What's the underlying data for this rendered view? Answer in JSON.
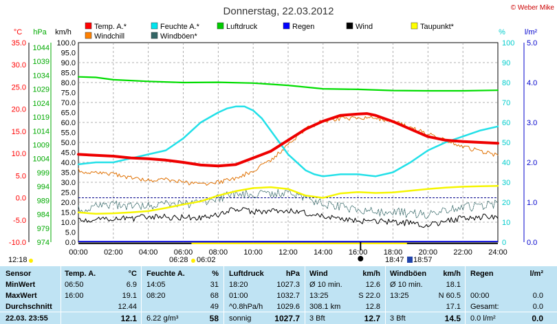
{
  "header": {
    "title": "Donnerstag, 22.03.2012",
    "credit": "© Weber Mike"
  },
  "units": {
    "temp": "°C",
    "press": "hPa",
    "wind": "km/h",
    "hum": "%",
    "rain": "l/m²"
  },
  "legend": [
    {
      "label": "Temp. A.*",
      "color": "#ff0000"
    },
    {
      "label": "Feuchte A.*",
      "color": "#00e5ee"
    },
    {
      "label": "Luftdruck",
      "color": "#00cc00"
    },
    {
      "label": "Regen",
      "color": "#0000ff"
    },
    {
      "label": "Wind",
      "color": "#000000"
    },
    {
      "label": "Taupunkt*",
      "color": "#ffff00"
    },
    {
      "label": "Windchill",
      "color": "#ff8000"
    },
    {
      "label": "Windböen*",
      "color": "#336666"
    }
  ],
  "chart_data": {
    "type": "line",
    "temp_ticks": [
      "35.0",
      "30.0",
      "25.0",
      "20.0",
      "15.0",
      "10.0",
      "5.0",
      "0.0",
      "-5.0",
      "-10.0"
    ],
    "press_ticks": [
      "1044",
      "1039",
      "1034",
      "1029",
      "1024",
      "1019",
      "1014",
      "1009",
      "1004",
      "999",
      "994",
      "989",
      "984",
      "979",
      "974"
    ],
    "wind_ticks": [
      "100.0",
      "95.0",
      "90.0",
      "85.0",
      "80.0",
      "75.0",
      "70.0",
      "65.0",
      "60.0",
      "55.0",
      "50.0",
      "45.0",
      "40.0",
      "35.0",
      "30.0",
      "25.0",
      "20.0",
      "15.0",
      "10.0",
      "5.0",
      "0.0"
    ],
    "hum_ticks": [
      "100",
      "90",
      "80",
      "70",
      "60",
      "50",
      "40",
      "30",
      "20",
      "10",
      "0"
    ],
    "rain_ticks": [
      "5.0",
      "4.0",
      "3.0",
      "2.0",
      "1.0",
      "0.0"
    ],
    "x_ticks": [
      "00:00",
      "02:00",
      "04:00",
      "06:00",
      "08:00",
      "10:00",
      "12:00",
      "14:00",
      "16:00",
      "18:00",
      "20:00",
      "22:00",
      "24:00"
    ],
    "temp_range": [
      -10,
      35
    ],
    "hum_range": [
      0,
      100
    ],
    "press_range": [
      974,
      1044
    ],
    "wind_range": [
      0,
      100
    ],
    "rain_range": [
      0,
      5
    ],
    "series": [
      {
        "name": "Temp. A.*",
        "axis": "temp",
        "hours": [
          0,
          1,
          2,
          3,
          4,
          5,
          6,
          7,
          8,
          9,
          10,
          11,
          12,
          13,
          14,
          15,
          16,
          16.5,
          17,
          18,
          19,
          20,
          21,
          22,
          23,
          24
        ],
        "values": [
          9.8,
          9.6,
          9.4,
          9.0,
          8.8,
          8.5,
          8.0,
          7.4,
          7.2,
          7.5,
          9.0,
          10.5,
          13.0,
          15.5,
          17.3,
          18.6,
          18.9,
          19.0,
          18.6,
          17.2,
          15.5,
          13.8,
          13.0,
          12.7,
          12.5,
          12.3
        ]
      },
      {
        "name": "Feuchte A.*",
        "axis": "hum",
        "hours": [
          0,
          1,
          2,
          3,
          4,
          5,
          6,
          6.5,
          7,
          8,
          8.5,
          9,
          9.5,
          10,
          10.5,
          11,
          11.5,
          12,
          13,
          13.5,
          14,
          15,
          16,
          17,
          18,
          19,
          20,
          21,
          22,
          23,
          24
        ],
        "values": [
          39,
          40,
          40,
          42,
          44,
          46,
          52,
          56,
          60,
          65,
          67,
          68,
          68,
          66,
          62,
          56,
          50,
          44,
          36,
          34,
          33,
          34,
          34,
          33,
          35,
          40,
          46,
          50,
          53,
          56,
          58
        ]
      },
      {
        "name": "Luftdruck",
        "axis": "press",
        "hours": [
          0,
          1,
          2,
          4,
          6,
          8,
          10,
          12,
          14,
          16,
          18,
          20,
          22,
          24
        ],
        "values": [
          1032.0,
          1031.8,
          1031.0,
          1030.4,
          1030.0,
          1030.1,
          1029.8,
          1029.0,
          1027.8,
          1027.6,
          1027.2,
          1027.1,
          1027.1,
          1027.3
        ]
      },
      {
        "name": "Taupunkt*",
        "axis": "temp",
        "hours": [
          0,
          1,
          2,
          3,
          4,
          5,
          6,
          7,
          8,
          9,
          10,
          11,
          12,
          13,
          14,
          15,
          16,
          17,
          18,
          19,
          20,
          21,
          22,
          23,
          24
        ],
        "values": [
          -3.3,
          -3.6,
          -3.5,
          -3.3,
          -3.0,
          -2.3,
          -1.5,
          -0.8,
          0.5,
          1.5,
          2.2,
          2.4,
          2.0,
          0.5,
          0.0,
          1.0,
          1.3,
          1.1,
          1.2,
          1.6,
          2.0,
          2.3,
          2.5,
          2.6,
          2.7
        ]
      },
      {
        "name": "Windchill",
        "axis": "temp",
        "hours": [
          0,
          1,
          2,
          3,
          4,
          5,
          6,
          7,
          8,
          9,
          10,
          11,
          12,
          13,
          14,
          15,
          16,
          17,
          18,
          19,
          20,
          21,
          22,
          23,
          24
        ],
        "values": [
          6.1,
          5.5,
          5.3,
          4.5,
          4.0,
          4.1,
          3.5,
          3.0,
          3.5,
          4.5,
          6.0,
          8.5,
          12.0,
          15.5,
          17.3,
          17.8,
          17.9,
          18.0,
          17.2,
          15.8,
          14.5,
          13.0,
          11.5,
          10.5,
          9.6
        ]
      },
      {
        "name": "Wind",
        "axis": "wind",
        "hours": [
          0,
          1,
          2,
          3,
          4,
          5,
          6,
          7,
          8,
          9,
          10,
          11,
          12,
          13,
          14,
          15,
          16,
          17,
          18,
          19,
          20,
          21,
          22,
          23,
          24
        ],
        "values": [
          10.5,
          11.5,
          12.0,
          11.5,
          13.0,
          12.5,
          12.5,
          12.0,
          14.0,
          16.5,
          15.0,
          16.0,
          15.5,
          14.5,
          13.0,
          11.5,
          10.5,
          10.5,
          10.0,
          9.5,
          8.5,
          10.5,
          12.0,
          12.5,
          13.0
        ]
      },
      {
        "name": "Windböen*",
        "axis": "wind",
        "hours": [
          0,
          1,
          2,
          3,
          4,
          5,
          6,
          7,
          8,
          9,
          10,
          11,
          12,
          13,
          14,
          15,
          16,
          17,
          18,
          19,
          20,
          21,
          22,
          23,
          24
        ],
        "values": [
          16.0,
          17.5,
          18.5,
          18.0,
          18.5,
          19.0,
          19.0,
          19.5,
          22.0,
          25.0,
          23.5,
          24.5,
          25.0,
          22.0,
          19.0,
          17.5,
          15.5,
          15.0,
          15.0,
          14.5,
          14.0,
          16.0,
          17.5,
          18.0,
          19.5
        ]
      }
    ],
    "rain_values": [
      0,
      0
    ],
    "reference_line": {
      "axis": "temp",
      "value": 0
    }
  },
  "sun": {
    "time_left": "12:18",
    "rise": "06:28",
    "rise_set": "06:02",
    "set_a": "18:47",
    "set_b": "18:57"
  },
  "table": {
    "rows": [
      {
        "label": "Sensor",
        "cols": [
          "Temp. A.",
          "°C",
          "Feuchte A.",
          "%",
          "Luftdruck",
          "hPa",
          "Wind",
          "km/h",
          "Windböen",
          "km/h",
          "Regen",
          "l/m²"
        ]
      },
      {
        "label": "MinWert",
        "cols": [
          "06:50",
          "6.9",
          "14:05",
          "31",
          "18:20",
          "1027.3",
          "Ø 10 min.",
          "12.6",
          "Ø 10 min.",
          "18.1",
          "",
          ""
        ]
      },
      {
        "label": "MaxWert",
        "cols": [
          "16:00",
          "19.1",
          "08:20",
          "68",
          "01:00",
          "1032.7",
          "13:25",
          "S 22.0",
          "13:25",
          "N 60.5",
          "00:00",
          "0.0"
        ]
      },
      {
        "label": "Durchschnitt",
        "cols": [
          "",
          "12.44",
          "",
          "49",
          "^0.8hPa/h",
          "1029.6",
          "308.1 km",
          "12.8",
          "",
          "17.1",
          "Gesamt:",
          "0.0"
        ]
      },
      {
        "label": "22.03.  23:55",
        "cols": [
          "",
          "12.1",
          "6.22 g/m³",
          "58",
          "sonnig",
          "1027.7",
          "3 Bft",
          "12.7",
          "3 Bft",
          "14.5",
          "0.0 l/m²",
          "0.0"
        ]
      }
    ]
  }
}
